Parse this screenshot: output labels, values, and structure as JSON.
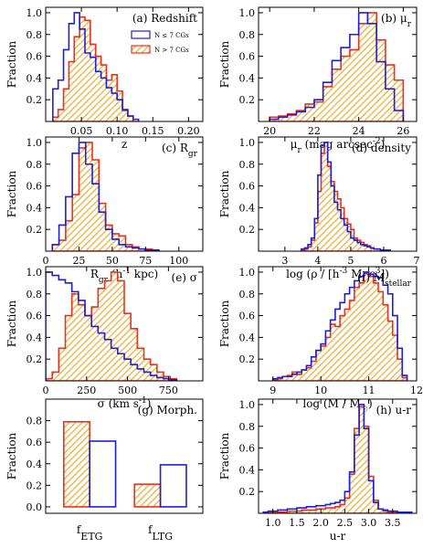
{
  "colors": {
    "few": "#1f1fd6",
    "many": "#e8321e",
    "hatch": "#e8b33c"
  },
  "legend": {
    "few": "N ≤ 7 CGs",
    "many": "N > 7 CGs"
  },
  "chart_data": [
    {
      "id": "a",
      "type": "histogram",
      "title": "(a) Redshift",
      "xlabel": "z",
      "ylabel": "Fraction",
      "xlim": [
        0,
        0.22
      ],
      "ylim": [
        0,
        1.05
      ],
      "xticks": [
        0.05,
        0.1,
        0.15,
        0.2
      ],
      "xtick_labels": [
        "0.05",
        "0.10",
        "0.15",
        "0.20"
      ],
      "yticks": [
        0.2,
        0.4,
        0.6,
        0.8,
        1.0
      ],
      "ytick_labels": [
        "0.2",
        "0.4",
        "0.6",
        "0.8",
        "1.0"
      ],
      "bin_edges": [
        0.01,
        0.0175,
        0.025,
        0.0325,
        0.04,
        0.0475,
        0.055,
        0.0625,
        0.07,
        0.0775,
        0.085,
        0.0925,
        0.1,
        0.1075,
        0.115,
        0.1225,
        0.13
      ],
      "series": [
        {
          "name": "N ≤ 7 CGs",
          "style": "outline",
          "values": [
            0.3,
            0.38,
            0.66,
            0.9,
            1.0,
            0.85,
            0.63,
            0.59,
            0.46,
            0.4,
            0.31,
            0.26,
            0.2,
            0.11,
            0.05,
            0.02
          ]
        },
        {
          "name": "N > 7 CGs",
          "style": "hatched",
          "values": [
            0.04,
            0.11,
            0.3,
            0.55,
            0.78,
            0.96,
            0.93,
            0.71,
            0.6,
            0.52,
            0.38,
            0.43,
            0.28,
            0.1,
            0.05,
            0.0
          ]
        }
      ],
      "show_legend": true
    },
    {
      "id": "b",
      "type": "histogram",
      "title": "(b) μ",
      "title_sub": "r",
      "xlabel": "μ",
      "xlabel_sub": "r",
      "xlabel_rest": " (mag arcsec",
      "xlabel_sup": "-2",
      "xlabel_end": ")",
      "ylabel": "Fraction",
      "xlim": [
        19.5,
        26.6
      ],
      "ylim": [
        0,
        1.05
      ],
      "xticks": [
        20,
        22,
        24,
        26
      ],
      "xtick_labels": [
        "20",
        "22",
        "24",
        "26"
      ],
      "yticks": [
        0.2,
        0.4,
        0.6,
        0.8,
        1.0
      ],
      "ytick_labels": [
        "0.2",
        "0.4",
        "0.6",
        "0.8",
        "1.0"
      ],
      "bin_edges": [
        20.0,
        20.4,
        20.8,
        21.2,
        21.6,
        22.0,
        22.4,
        22.8,
        23.2,
        23.6,
        24.0,
        24.4,
        24.8,
        25.2,
        25.6,
        26.0
      ],
      "series": [
        {
          "name": "N ≤ 7 CGs",
          "style": "outline",
          "values": [
            0.02,
            0.04,
            0.06,
            0.09,
            0.13,
            0.2,
            0.36,
            0.56,
            0.68,
            0.8,
            1.0,
            0.9,
            0.55,
            0.3,
            0.1
          ]
        },
        {
          "name": "N > 7 CGs",
          "style": "hatched",
          "values": [
            0.04,
            0.05,
            0.07,
            0.1,
            0.16,
            0.18,
            0.32,
            0.48,
            0.6,
            0.66,
            0.9,
            1.0,
            0.75,
            0.52,
            0.38
          ]
        }
      ]
    },
    {
      "id": "c",
      "type": "histogram",
      "title": "(c) R",
      "title_sub": "gr",
      "xlabel": "R",
      "xlabel_sub": "gr",
      "xlabel_rest": " (h",
      "xlabel_sup": "-1",
      "xlabel_end": " kpc)",
      "ylabel": "Fraction",
      "xlim": [
        0,
        118
      ],
      "ylim": [
        0,
        1.05
      ],
      "xticks": [
        0,
        25,
        50,
        75,
        100
      ],
      "xtick_labels": [
        "0",
        "25",
        "50",
        "75",
        "100"
      ],
      "yticks": [
        0.2,
        0.4,
        0.6,
        0.8,
        1.0
      ],
      "ytick_labels": [
        "0.2",
        "0.4",
        "0.6",
        "0.8",
        "1.0"
      ],
      "bin_edges": [
        5,
        10,
        15,
        20,
        25,
        30,
        35,
        40,
        45,
        50,
        55,
        60,
        65,
        70,
        75,
        80,
        85
      ],
      "series": [
        {
          "name": "N ≤ 7 CGs",
          "style": "outline",
          "values": [
            0.06,
            0.24,
            0.5,
            0.9,
            1.0,
            0.8,
            0.62,
            0.36,
            0.2,
            0.11,
            0.06,
            0.04,
            0.03,
            0.02,
            0.01,
            0.01
          ]
        },
        {
          "name": "N > 7 CGs",
          "style": "hatched",
          "values": [
            0.06,
            0.1,
            0.28,
            0.52,
            0.95,
            1.0,
            0.84,
            0.44,
            0.24,
            0.16,
            0.14,
            0.06,
            0.04,
            0.02,
            0.02,
            0.01
          ]
        }
      ]
    },
    {
      "id": "d",
      "type": "histogram",
      "title": "(d) density",
      "xlabel": "log (ρ / [h",
      "xlabel_sup": "-3",
      "xlabel_rest": " Mpc",
      "xlabel_sup2": "3",
      "xlabel_end": "])",
      "ylabel": "Fraction",
      "xlim": [
        2.2,
        7.0
      ],
      "ylim": [
        0,
        1.05
      ],
      "xticks": [
        3,
        4,
        5,
        6,
        7
      ],
      "xtick_labels": [
        "3",
        "4",
        "5",
        "6",
        "7"
      ],
      "yticks": [
        0.2,
        0.4,
        0.6,
        0.8,
        1.0
      ],
      "ytick_labels": [
        "0.2",
        "0.4",
        "0.6",
        "0.8",
        "1.0"
      ],
      "bin_edges": [
        3.5,
        3.6,
        3.7,
        3.8,
        3.9,
        4.0,
        4.1,
        4.2,
        4.3,
        4.4,
        4.5,
        4.6,
        4.7,
        4.8,
        4.9,
        5.0,
        5.1,
        5.2,
        5.3,
        5.4,
        5.5,
        5.6,
        5.7,
        5.8,
        5.9,
        6.0,
        6.1,
        6.2
      ],
      "series": [
        {
          "name": "N ≤ 7 CGs",
          "style": "outline",
          "values": [
            0.02,
            0.03,
            0.06,
            0.12,
            0.3,
            0.7,
            0.97,
            1.0,
            0.82,
            0.6,
            0.45,
            0.38,
            0.3,
            0.24,
            0.18,
            0.12,
            0.1,
            0.08,
            0.06,
            0.05,
            0.04,
            0.03,
            0.02,
            0.02,
            0.01,
            0.01,
            0.01
          ]
        },
        {
          "name": "N > 7 CGs",
          "style": "hatched",
          "values": [
            0.01,
            0.02,
            0.04,
            0.1,
            0.26,
            0.55,
            0.9,
            1.0,
            0.78,
            0.64,
            0.55,
            0.48,
            0.4,
            0.3,
            0.25,
            0.2,
            0.12,
            0.1,
            0.08,
            0.06,
            0.05,
            0.03,
            0.02,
            0.02,
            0.01,
            0.01,
            0.01
          ]
        }
      ]
    },
    {
      "id": "e",
      "type": "histogram",
      "title": "(e) σ",
      "xlabel": "σ (km s",
      "xlabel_sup": "-1",
      "xlabel_end": ")",
      "ylabel": "Fraction",
      "xlim": [
        0,
        960
      ],
      "ylim": [
        0,
        1.05
      ],
      "xticks": [
        0,
        250,
        500,
        750
      ],
      "xtick_labels": [
        "0",
        "250",
        "500",
        "750"
      ],
      "yticks": [
        0.2,
        0.4,
        0.6,
        0.8,
        1.0
      ],
      "ytick_labels": [
        "0.2",
        "0.4",
        "0.6",
        "0.8",
        "1.0"
      ],
      "bin_edges": [
        0,
        40,
        80,
        120,
        160,
        200,
        240,
        280,
        320,
        360,
        400,
        440,
        480,
        520,
        560,
        600,
        640,
        680,
        720,
        760,
        800
      ],
      "series": [
        {
          "name": "N ≤ 7 CGs",
          "style": "outline",
          "values": [
            1.0,
            0.97,
            0.93,
            0.9,
            0.82,
            0.74,
            0.6,
            0.5,
            0.44,
            0.38,
            0.3,
            0.25,
            0.2,
            0.15,
            0.11,
            0.08,
            0.05,
            0.03,
            0.02,
            0.01
          ]
        },
        {
          "name": "N > 7 CGs",
          "style": "hatched",
          "values": [
            0.02,
            0.08,
            0.3,
            0.6,
            0.8,
            0.7,
            0.6,
            0.68,
            0.85,
            0.92,
            1.0,
            0.92,
            0.62,
            0.48,
            0.3,
            0.2,
            0.15,
            0.08,
            0.04,
            0.02
          ]
        }
      ]
    },
    {
      "id": "f",
      "type": "histogram",
      "title": "(f) M",
      "title_sub": "stellar",
      "xlabel": "log (M / M",
      "xlabel_sub": "☉",
      "xlabel_end": ")",
      "ylabel": "Fraction",
      "xlim": [
        8.7,
        12.0
      ],
      "ylim": [
        0,
        1.05
      ],
      "xticks": [
        9,
        10,
        11,
        12
      ],
      "xtick_labels": [
        "9",
        "10",
        "11",
        "12"
      ],
      "yticks": [
        0.2,
        0.4,
        0.6,
        0.8,
        1.0
      ],
      "ytick_labels": [
        "0.2",
        "0.4",
        "0.6",
        "0.8",
        "1.0"
      ],
      "bin_edges": [
        9.0,
        9.1,
        9.2,
        9.3,
        9.4,
        9.5,
        9.6,
        9.7,
        9.8,
        9.9,
        10.0,
        10.1,
        10.2,
        10.3,
        10.4,
        10.5,
        10.6,
        10.7,
        10.8,
        10.9,
        11.0,
        11.1,
        11.2,
        11.3,
        11.4,
        11.5,
        11.6,
        11.7,
        11.8
      ],
      "series": [
        {
          "name": "N ≤ 7 CGs",
          "style": "outline",
          "values": [
            0.02,
            0.03,
            0.04,
            0.04,
            0.06,
            0.08,
            0.1,
            0.14,
            0.22,
            0.28,
            0.34,
            0.46,
            0.56,
            0.66,
            0.72,
            0.8,
            0.86,
            0.92,
            0.96,
            1.0,
            0.98,
            0.96,
            0.95,
            0.88,
            0.8,
            0.6,
            0.3,
            0.05
          ]
        },
        {
          "name": "N > 7 CGs",
          "style": "hatched",
          "values": [
            0.01,
            0.02,
            0.04,
            0.05,
            0.08,
            0.06,
            0.1,
            0.12,
            0.18,
            0.28,
            0.32,
            0.4,
            0.52,
            0.5,
            0.6,
            0.66,
            0.74,
            0.86,
            0.9,
            1.0,
            0.96,
            0.9,
            0.82,
            0.7,
            0.55,
            0.42,
            0.2,
            0.03
          ]
        }
      ]
    },
    {
      "id": "g",
      "type": "bar",
      "title": "(g) Morph.",
      "ylabel": "Fraction",
      "categories": [
        "f",
        "f"
      ],
      "category_subs": [
        "ETG",
        "LTG"
      ],
      "ylim": [
        -0.06,
        1.0
      ],
      "yticks": [
        0.0,
        0.2,
        0.4,
        0.6,
        0.8
      ],
      "ytick_labels": [
        "0.0",
        "0.2",
        "0.4",
        "0.6",
        "0.8"
      ],
      "series": [
        {
          "name": "N > 7 CGs",
          "style": "hatched",
          "values": [
            0.79,
            0.21
          ]
        },
        {
          "name": "N ≤ 7 CGs",
          "style": "outline",
          "values": [
            0.61,
            0.39
          ]
        }
      ]
    },
    {
      "id": "h",
      "type": "histogram",
      "title": "(h) u-r",
      "xlabel": "u-r",
      "ylabel": "Fraction",
      "xlim": [
        0.7,
        4.0
      ],
      "ylim": [
        0,
        1.05
      ],
      "xticks": [
        1.0,
        1.5,
        2.0,
        2.5,
        3.0,
        3.5
      ],
      "xtick_labels": [
        "1.0",
        "1.5",
        "2.0",
        "2.5",
        "3.0",
        "3.5"
      ],
      "yticks": [
        0.2,
        0.4,
        0.6,
        0.8,
        1.0
      ],
      "ytick_labels": [
        "0.2",
        "0.4",
        "0.6",
        "0.8",
        "1.0"
      ],
      "bin_edges": [
        0.8,
        0.9,
        1.0,
        1.1,
        1.2,
        1.3,
        1.4,
        1.5,
        1.6,
        1.7,
        1.8,
        1.9,
        2.0,
        2.1,
        2.2,
        2.3,
        2.4,
        2.5,
        2.6,
        2.7,
        2.8,
        2.9,
        3.0,
        3.1,
        3.2,
        3.3,
        3.4,
        3.5,
        3.6,
        3.7,
        3.8,
        3.9
      ],
      "series": [
        {
          "name": "N ≤ 7 CGs",
          "style": "outline",
          "values": [
            0.01,
            0.02,
            0.02,
            0.03,
            0.03,
            0.04,
            0.04,
            0.05,
            0.05,
            0.06,
            0.06,
            0.07,
            0.07,
            0.08,
            0.09,
            0.1,
            0.12,
            0.2,
            0.38,
            0.72,
            1.0,
            0.78,
            0.3,
            0.1,
            0.04,
            0.03,
            0.02,
            0.02,
            0.01,
            0.01,
            0.01
          ]
        },
        {
          "name": "N > 7 CGs",
          "style": "hatched",
          "values": [
            0.0,
            0.01,
            0.01,
            0.01,
            0.01,
            0.02,
            0.02,
            0.02,
            0.03,
            0.03,
            0.03,
            0.04,
            0.04,
            0.05,
            0.05,
            0.06,
            0.08,
            0.14,
            0.36,
            0.78,
            0.98,
            0.8,
            0.34,
            0.12,
            0.04,
            0.02,
            0.01,
            0.01,
            0.01,
            0.0,
            0.0
          ]
        }
      ]
    }
  ]
}
